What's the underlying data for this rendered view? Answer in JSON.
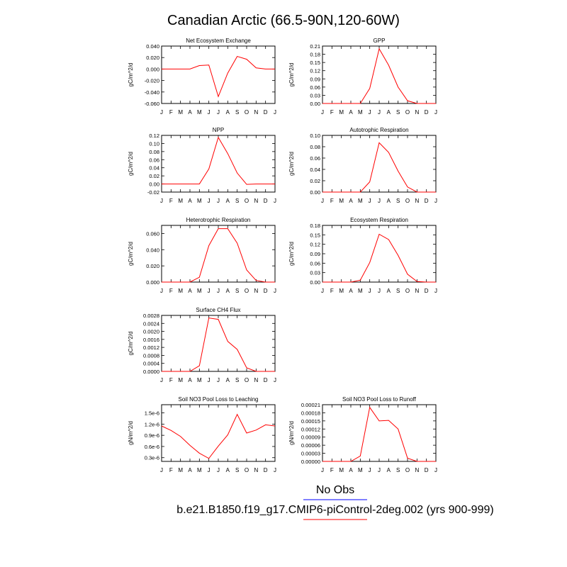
{
  "title": "Canadian Arctic (66.5-90N,120-60W)",
  "months": [
    "J",
    "F",
    "M",
    "A",
    "M",
    "J",
    "J",
    "A",
    "S",
    "O",
    "N",
    "D",
    "J"
  ],
  "legend": {
    "obs_label": "No Obs",
    "obs_color": "#0000ff",
    "model_label": "b.e21.B1850.f19_g17.CMIP6-piControl-2deg.002 (yrs 900-999)",
    "model_color": "#ff0000"
  },
  "chart_data": [
    {
      "type": "line",
      "title": "Net Ecosystem Exchange",
      "ylabel": "gC/m^2/d",
      "ylim": [
        -0.06,
        0.04
      ],
      "yticks": [
        "-0.060",
        "-0.040",
        "-0.020",
        "0.000",
        "0.020",
        "0.040"
      ],
      "x": [
        1,
        2,
        3,
        4,
        5,
        6,
        7,
        8,
        9,
        10,
        11,
        12,
        13
      ],
      "values": [
        0.0,
        0.0,
        0.0,
        0.0,
        0.006,
        0.007,
        -0.048,
        -0.007,
        0.022,
        0.017,
        0.002,
        0.0,
        0.0
      ]
    },
    {
      "type": "line",
      "title": "GPP",
      "ylabel": "gC/m^2/d",
      "ylim": [
        0,
        0.21
      ],
      "yticks": [
        "0.00",
        "0.03",
        "0.06",
        "0.09",
        "0.12",
        "0.15",
        "0.18",
        "0.21"
      ],
      "x": [
        1,
        2,
        3,
        4,
        5,
        6,
        7,
        8,
        9,
        10,
        11,
        12,
        13
      ],
      "values": [
        0.0,
        0.0,
        0.0,
        0.0,
        0.0,
        0.055,
        0.2,
        0.14,
        0.06,
        0.01,
        0.0,
        0.0,
        0.0
      ]
    },
    {
      "type": "line",
      "title": "NPP",
      "ylabel": "gC/m^2/d",
      "ylim": [
        -0.02,
        0.12
      ],
      "yticks": [
        "-0.02",
        "0.00",
        "0.02",
        "0.04",
        "0.06",
        "0.08",
        "0.10",
        "0.12"
      ],
      "x": [
        1,
        2,
        3,
        4,
        5,
        6,
        7,
        8,
        9,
        10,
        11,
        12,
        13
      ],
      "values": [
        0.0,
        0.0,
        0.0,
        0.0,
        0.0,
        0.037,
        0.115,
        0.075,
        0.027,
        -0.001,
        0.0,
        0.0,
        0.0
      ]
    },
    {
      "type": "line",
      "title": "Autotrophic Respiration",
      "ylabel": "gC/m^2/d",
      "ylim": [
        0,
        0.1
      ],
      "yticks": [
        "0.00",
        "0.02",
        "0.04",
        "0.06",
        "0.08",
        "0.10"
      ],
      "x": [
        1,
        2,
        3,
        4,
        5,
        6,
        7,
        8,
        9,
        10,
        11,
        12,
        13
      ],
      "values": [
        0.0,
        0.0,
        0.0,
        0.0,
        0.0,
        0.018,
        0.087,
        0.07,
        0.037,
        0.009,
        0.0,
        0.0,
        0.0
      ]
    },
    {
      "type": "line",
      "title": "Heterotrophic Respiration",
      "ylabel": "gC/m^2/d",
      "ylim": [
        0,
        0.07
      ],
      "yticks": [
        "0.000",
        "0.020",
        "0.040",
        "0.060"
      ],
      "ytick_values": [
        0,
        0.02,
        0.04,
        0.06
      ],
      "x": [
        1,
        2,
        3,
        4,
        5,
        6,
        7,
        8,
        9,
        10,
        11,
        12,
        13
      ],
      "values": [
        0.0,
        0.0,
        0.0,
        0.0,
        0.006,
        0.045,
        0.066,
        0.066,
        0.048,
        0.015,
        0.002,
        0.0,
        0.0
      ]
    },
    {
      "type": "line",
      "title": "Ecosystem Respiration",
      "ylabel": "gC/m^2/d",
      "ylim": [
        0,
        0.18
      ],
      "yticks": [
        "0.00",
        "0.03",
        "0.06",
        "0.09",
        "0.12",
        "0.15",
        "0.18"
      ],
      "x": [
        1,
        2,
        3,
        4,
        5,
        6,
        7,
        8,
        9,
        10,
        11,
        12,
        13
      ],
      "values": [
        0.0,
        0.0,
        0.0,
        0.0,
        0.006,
        0.062,
        0.152,
        0.135,
        0.085,
        0.025,
        0.002,
        0.0,
        0.0
      ]
    },
    {
      "type": "line",
      "title": "Surface CH4 Flux",
      "ylabel": "gC/m^2/d",
      "ylim": [
        0,
        0.0028
      ],
      "yticks": [
        "0.0000",
        "0.0004",
        "0.0008",
        "0.0012",
        "0.0016",
        "0.0020",
        "0.0024",
        "0.0028"
      ],
      "x": [
        1,
        2,
        3,
        4,
        5,
        6,
        7,
        8,
        9,
        10,
        11,
        12,
        13
      ],
      "values": [
        0.0,
        0.0,
        0.0,
        0.0,
        0.00028,
        0.00267,
        0.0026,
        0.0015,
        0.0011,
        0.00018,
        0.0,
        0.0,
        0.0
      ]
    },
    {
      "type": "line",
      "title": "Soil NO3 Pool Loss to Leaching",
      "ylabel": "gN/m^2/d",
      "ylim": [
        2e-07,
        1.72e-06
      ],
      "yticks": [
        "0.3e-6",
        "0.6e-6",
        "0.9e-6",
        "1.2e-6",
        "1.5e-6"
      ],
      "ytick_values": [
        3e-07,
        6e-07,
        9e-07,
        1.2e-06,
        1.5e-06
      ],
      "x": [
        1,
        2,
        3,
        4,
        5,
        6,
        7,
        8,
        9,
        10,
        11,
        12,
        13
      ],
      "values": [
        1.15e-06,
        1.03e-06,
        8.7e-07,
        6.3e-07,
        4.2e-07,
        2.8e-07,
        6.1e-07,
        9.1e-07,
        1.46e-06,
        9.6e-07,
        1.04e-06,
        1.18e-06,
        1.15e-06
      ]
    },
    {
      "type": "line",
      "title": "Soil NO3 Pool Loss to Runoff",
      "ylabel": "gN/m^2/d",
      "ylim": [
        0,
        0.00021
      ],
      "yticks": [
        "0.00000",
        "0.00003",
        "0.00006",
        "0.00009",
        "0.00012",
        "0.00015",
        "0.00018",
        "0.00021"
      ],
      "x": [
        1,
        2,
        3,
        4,
        5,
        6,
        7,
        8,
        9,
        10,
        11,
        12,
        13
      ],
      "values": [
        0.0,
        0.0,
        0.0,
        0.0,
        2e-05,
        0.0002,
        0.00015,
        0.000152,
        0.00012,
        1.2e-05,
        0.0,
        0.0,
        0.0
      ]
    }
  ]
}
